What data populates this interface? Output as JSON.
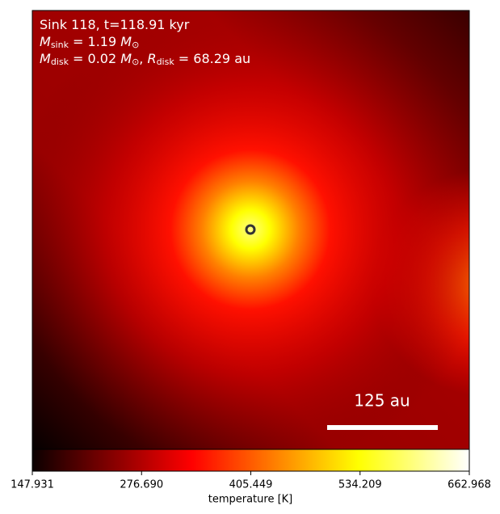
{
  "chart_data": {
    "type": "heatmap",
    "colormap": "hot",
    "annotations": [
      [
        {
          "text": "Sink 118, t=118.91 kyr"
        }
      ],
      [
        {
          "text": "M",
          "italic": true
        },
        {
          "text": "sink",
          "sub": true
        },
        {
          "text": " = 1.19 "
        },
        {
          "text": "M",
          "italic": true
        },
        {
          "text": "⊙",
          "sub": true
        }
      ],
      [
        {
          "text": "M",
          "italic": true
        },
        {
          "text": "disk",
          "sub": true
        },
        {
          "text": " = 0.02 "
        },
        {
          "text": "M",
          "italic": true
        },
        {
          "text": "⊙",
          "sub": true
        },
        {
          "text": ", "
        },
        {
          "text": "R",
          "italic": true
        },
        {
          "text": "disk",
          "sub": true
        },
        {
          "text": " = 68.29 au"
        }
      ]
    ],
    "scale_bar_label": "125 au",
    "colorbar": {
      "label": "temperature [K]",
      "clim": [
        147.931,
        662.968
      ],
      "ticks": [
        147.931,
        {
          "value": 276.69,
          "label": "276.690"
        },
        405.449,
        534.209,
        662.968
      ]
    }
  }
}
